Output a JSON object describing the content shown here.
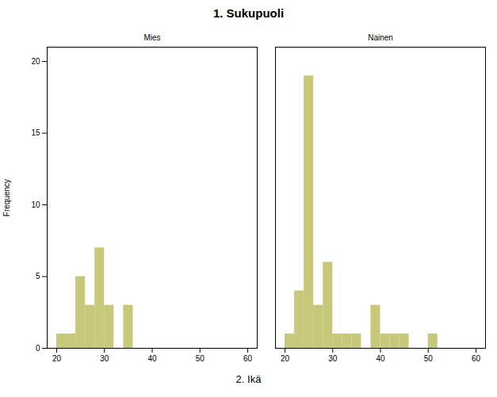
{
  "chart_data": {
    "type": "histogram",
    "title": "1. Sukupuoli",
    "xlabel": "2. Ikä",
    "ylabel": "Frequency",
    "bins": [
      20,
      22,
      24,
      26,
      28,
      30,
      32,
      34,
      36,
      38,
      40,
      42,
      44,
      46,
      48,
      50,
      52,
      54,
      56,
      58,
      60,
      62
    ],
    "series": [
      {
        "name": "Mies",
        "values": [
          1,
          1,
          5,
          3,
          7,
          3,
          0,
          3,
          0,
          0,
          0,
          0,
          0,
          0,
          0,
          0,
          0,
          0,
          0,
          0,
          0
        ]
      },
      {
        "name": "Nainen",
        "values": [
          1,
          4,
          19,
          3,
          6,
          1,
          1,
          1,
          0,
          3,
          1,
          1,
          1,
          0,
          0,
          1,
          0,
          0,
          0,
          0,
          0
        ]
      }
    ],
    "color": "#C8C87A",
    "xlim": [
      18,
      62
    ],
    "xticks": [
      20,
      30,
      40,
      50,
      60
    ],
    "ylim": [
      0,
      21
    ],
    "yticks": [
      0,
      5,
      10,
      15,
      20
    ]
  }
}
